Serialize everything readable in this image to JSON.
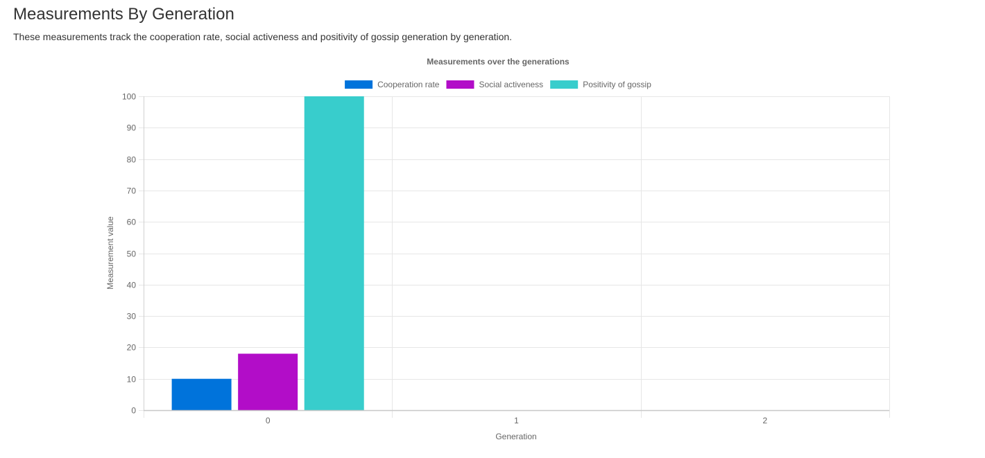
{
  "page": {
    "title": "Measurements By Generation",
    "description": "These measurements track the cooperation rate, social activeness and positivity of gossip generation by generation."
  },
  "chart_data": {
    "type": "bar",
    "title": "Measurements over the generations",
    "xlabel": "Generation",
    "ylabel": "Measurement value",
    "categories": [
      "0",
      "1",
      "2"
    ],
    "ylim": [
      0,
      100
    ],
    "yticks": [
      0,
      10,
      20,
      30,
      40,
      50,
      60,
      70,
      80,
      90,
      100
    ],
    "grid": true,
    "legend_position": "top",
    "series": [
      {
        "name": "Cooperation rate",
        "color": "#0073db",
        "values": [
          10,
          0,
          0
        ]
      },
      {
        "name": "Social activeness",
        "color": "#b20dc8",
        "values": [
          18,
          0,
          0
        ]
      },
      {
        "name": "Positivity of gossip",
        "color": "#38cdcc",
        "values": [
          100,
          0,
          0
        ]
      }
    ]
  }
}
